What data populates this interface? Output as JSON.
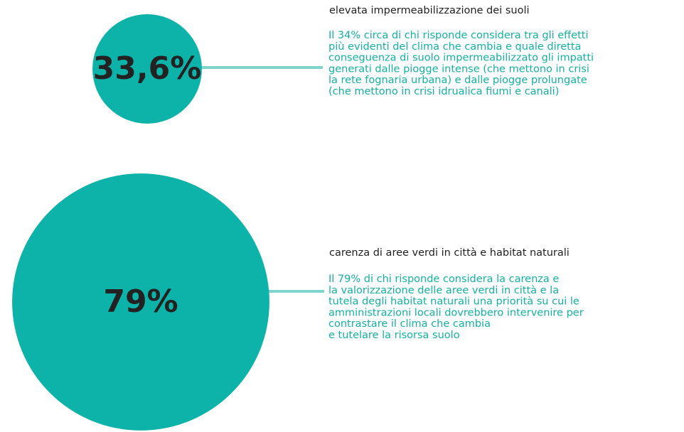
{
  "items": [
    {
      "value": 33.6,
      "value_label": "33,6%",
      "heading": "elevata impermeabilizzazione dei suoli",
      "body": [
        "Il 34% circa di chi risponde considera tra gli effetti",
        "più evidenti del clima che cambia e quale diretta",
        "conseguenza di suolo impermeabilizzato gli impatti",
        "generati dalle piogge intense (che mettono in crisi",
        "la rete fognaria urbana) e dalle piogge prolungate",
        "(che mettono in crisi idrualica fiumi e canali)"
      ]
    },
    {
      "value": 79,
      "value_label": "79%",
      "heading": "carenza di aree verdi in città e habitat naturali",
      "body": [
        "Il 79% di chi risponde considera la carenza e",
        "la valorizzazione delle aree verdi in città e la",
        "tutela degli habitat naturali una priorità su cui le",
        "amministrazioni locali dovrebbero intervenire per",
        "contrastare il clima che cambia",
        "e tutelare la risorsa suolo"
      ]
    }
  ]
}
